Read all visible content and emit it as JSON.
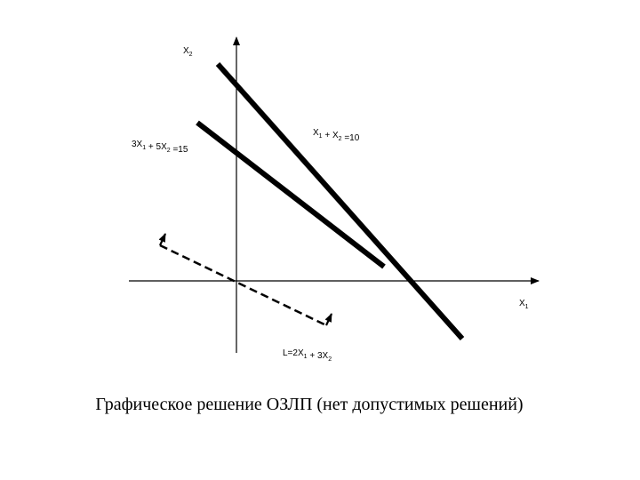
{
  "diagram": {
    "axis_x": {
      "label": "X",
      "sub": "1"
    },
    "axis_y": {
      "label": "X",
      "sub": "2"
    },
    "line_a": {
      "parts": [
        {
          "text": "X",
          "sub": "1"
        },
        {
          "text": " + X",
          "sub": "2"
        },
        {
          "text": " =10",
          "sub": ""
        }
      ]
    },
    "line_b": {
      "parts": [
        {
          "text": "3X",
          "sub": "1"
        },
        {
          "text": " + 5X",
          "sub": "2"
        },
        {
          "text": " =15",
          "sub": ""
        }
      ]
    },
    "objective": {
      "parts": [
        {
          "text": "L=2X",
          "sub": "1"
        },
        {
          "text": " + 3X",
          "sub": "2"
        }
      ]
    },
    "caption": "Графическое решение ОЗЛП (нет допустимых решений)"
  }
}
